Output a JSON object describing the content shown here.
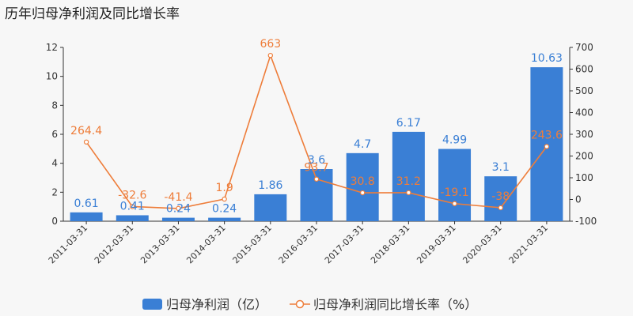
{
  "title": "历年归母净利润及同比增长率",
  "legend": {
    "bar_label": "归母净利润（亿）",
    "line_label": "归母净利润同比增长率（%）"
  },
  "colors": {
    "bar": "#3a7fd5",
    "line": "#ee7d3a"
  },
  "chart_data": {
    "type": "bar",
    "categories": [
      "2011-03-31",
      "2012-03-31",
      "2013-03-31",
      "2014-03-31",
      "2015-03-31",
      "2016-03-31",
      "2017-03-31",
      "2018-03-31",
      "2019-03-31",
      "2020-03-31",
      "2021-03-31"
    ],
    "series": [
      {
        "name": "归母净利润（亿）",
        "type": "bar",
        "axis": "left",
        "values": [
          0.61,
          0.41,
          0.24,
          0.24,
          1.86,
          3.6,
          4.7,
          6.17,
          4.99,
          3.1,
          10.63
        ],
        "labels": [
          "0.61",
          "0.41",
          "0.24",
          "0.24",
          "1.86",
          "3.6",
          "4.7",
          "6.17",
          "4.99",
          "3.1",
          "10.63"
        ]
      },
      {
        "name": "归母净利润同比增长率（%）",
        "type": "line",
        "axis": "right",
        "values": [
          264.4,
          -32.6,
          -41.4,
          1.9,
          663,
          93.7,
          30.8,
          31.2,
          -19.1,
          -38,
          243.6
        ],
        "labels": [
          "264.4",
          "-32.6",
          "-41.4",
          "1.9",
          "663",
          "93.7",
          "30.8",
          "31.2",
          "-19.1",
          "-38",
          "243.6"
        ]
      }
    ],
    "ylim_left": [
      0,
      12
    ],
    "yticks_left": [
      0,
      2,
      4,
      6,
      8,
      10,
      12
    ],
    "ylim_right": [
      -100,
      700
    ],
    "yticks_right": [
      -100,
      0,
      100,
      200,
      300,
      400,
      500,
      600,
      700
    ],
    "legend_position": "bottom",
    "grid": false
  }
}
